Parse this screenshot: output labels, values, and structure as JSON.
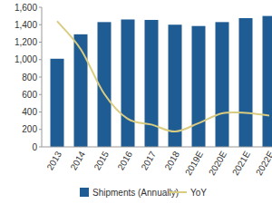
{
  "chart_data": {
    "type": "bar",
    "categories": [
      "2013",
      "2014",
      "2015",
      "2016",
      "2017",
      "2018",
      "2019E",
      "2020E",
      "2021E",
      "2022E"
    ],
    "series": [
      {
        "name": "Shipments (Annually)",
        "type": "bar",
        "color": "#1f5c93",
        "values": [
          1010,
          1290,
          1430,
          1460,
          1455,
          1400,
          1385,
          1430,
          1475,
          1500
        ]
      },
      {
        "name": "YoY",
        "type": "line",
        "color": "#d9cc80",
        "axis": "y2",
        "line_style": "smooth",
        "values": [
          35,
          25,
          9,
          0,
          -2,
          -4.5,
          -1.5,
          2,
          2.2,
          1.2
        ]
      }
    ],
    "ylim": [
      0,
      1600
    ],
    "yticks": [
      0,
      200,
      400,
      600,
      800,
      {
        "value": 1000,
        "label": "1,000"
      },
      {
        "value": 1200,
        "label": "1,200"
      },
      {
        "value": 1400,
        "label": "1,400"
      },
      {
        "value": 1600,
        "label": "1,600"
      }
    ],
    "y2lim": [
      -10,
      40
    ],
    "grid": false,
    "legend": "bottom"
  }
}
